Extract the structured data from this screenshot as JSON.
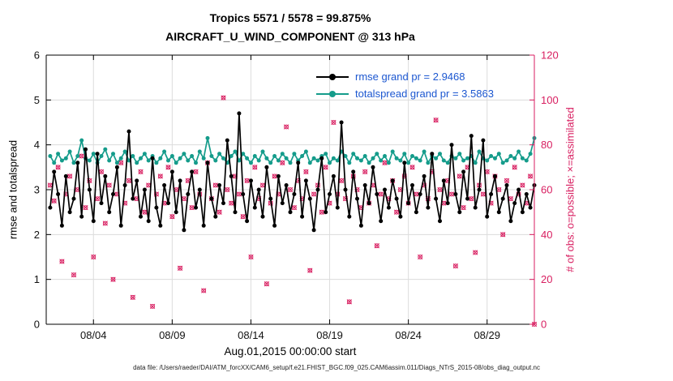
{
  "title": {
    "line1": "Tropics 5571 / 5578 = 99.875%",
    "line2": "AIRCRAFT_U_WIND_COMPONENT @ 313 hPa"
  },
  "legend": [
    {
      "label": "rmse grand pr = 2.9468",
      "color": "#000000"
    },
    {
      "label": "totalspread grand pr = 3.5863",
      "color": "#159c8b"
    }
  ],
  "styles": {
    "legend_text_color": "#1c57d0",
    "grid_color": "#dcdcdc"
  },
  "footer": {
    "datafile": "data file: /Users/raeder/DAI/ATM_forcXX/CAM6_setup/f.e21.FHIST_BGC.f09_025.CAM6assim.011/Diags_NTrS_2015-08/obs_diag_output.nc"
  },
  "chart_data": {
    "type": "line",
    "title": "Tropics 5571 / 5578 = 99.875%",
    "subtitle": "AIRCRAFT_U_WIND_COMPONENT @ 313 hPa",
    "xlabel": "Aug.01,2015 00:00:00 start",
    "x_range_days": 31,
    "x_start_days": 0.25,
    "x_step_days": 0.25,
    "x_ticks": [
      {
        "t": 3,
        "label": "08/04"
      },
      {
        "t": 8,
        "label": "08/09"
      },
      {
        "t": 13,
        "label": "08/14"
      },
      {
        "t": 18,
        "label": "08/19"
      },
      {
        "t": 23,
        "label": "08/24"
      },
      {
        "t": 28,
        "label": "08/29"
      }
    ],
    "left_axis": {
      "label": "rmse and totalspread",
      "min": 0,
      "max": 6,
      "ticks": [
        0,
        1,
        2,
        3,
        4,
        5,
        6
      ]
    },
    "right_axis": {
      "label": "# of obs: o=possible; ×=assimilated",
      "min": 0,
      "max": 120,
      "ticks": [
        0,
        20,
        40,
        60,
        80,
        100,
        120
      ],
      "color": "#d81e60"
    },
    "grid": true,
    "legend_position": "top-center-inside",
    "series": [
      {
        "name": "rmse",
        "grand_pr": 2.9468,
        "axis": "left",
        "color": "#000000",
        "marker": "dot",
        "values": [
          2.6,
          3.4,
          2.9,
          2.2,
          3.3,
          2.5,
          2.8,
          3.6,
          2.4,
          3.9,
          3.0,
          2.3,
          3.8,
          2.7,
          3.3,
          2.5,
          2.9,
          3.5,
          2.2,
          3.1,
          4.3,
          2.8,
          3.2,
          2.4,
          3.0,
          2.3,
          3.7,
          2.6,
          2.2,
          3.1,
          2.7,
          3.4,
          2.5,
          3.2,
          2.1,
          2.9,
          3.4,
          2.6,
          3.0,
          2.2,
          3.6,
          2.8,
          2.4,
          3.1,
          2.7,
          4.1,
          3.3,
          2.5,
          4.7,
          2.9,
          2.3,
          3.2,
          2.6,
          3.0,
          2.4,
          3.5,
          2.8,
          2.2,
          3.3,
          2.7,
          3.1,
          2.5,
          2.9,
          3.6,
          2.4,
          3.2,
          2.8,
          2.1,
          3.0,
          3.7,
          2.5,
          2.9,
          3.3,
          2.6,
          4.5,
          3.0,
          2.4,
          3.4,
          2.8,
          2.2,
          3.1,
          2.7,
          3.5,
          2.9,
          2.3,
          3.0,
          2.6,
          3.2,
          2.8,
          2.4,
          3.6,
          2.7,
          3.1,
          2.5,
          2.9,
          3.3,
          2.6,
          3.8,
          2.8,
          2.3,
          3.2,
          2.7,
          4.0,
          2.9,
          2.5,
          3.4,
          2.8,
          4.2,
          2.6,
          3.0,
          4.1,
          2.4,
          2.9,
          3.3,
          2.5,
          2.8,
          3.1,
          2.3,
          2.7,
          3.0,
          2.5,
          2.9,
          2.6,
          3.1
        ]
      },
      {
        "name": "totalspread",
        "grand_pr": 3.5863,
        "axis": "left",
        "color": "#159c8b",
        "marker": "dot",
        "values": [
          3.75,
          3.6,
          3.8,
          3.65,
          3.7,
          3.85,
          3.6,
          3.75,
          4.1,
          3.7,
          3.65,
          3.8,
          3.6,
          3.75,
          3.9,
          3.65,
          3.8,
          3.6,
          3.7,
          3.85,
          3.65,
          3.75,
          3.6,
          3.7,
          3.8,
          3.65,
          3.75,
          3.6,
          3.7,
          3.85,
          3.65,
          3.75,
          3.6,
          3.7,
          3.8,
          3.65,
          3.75,
          3.6,
          3.85,
          3.7,
          4.15,
          3.75,
          3.65,
          3.8,
          3.7,
          3.6,
          3.75,
          3.85,
          3.65,
          3.8,
          3.7,
          3.6,
          3.75,
          3.65,
          3.85,
          3.7,
          3.6,
          3.75,
          3.65,
          3.8,
          3.7,
          3.6,
          3.8,
          3.65,
          3.75,
          3.85,
          3.6,
          3.7,
          3.65,
          3.75,
          3.8,
          3.6,
          3.7,
          3.65,
          3.85,
          3.75,
          3.6,
          3.8,
          3.7,
          3.65,
          3.75,
          3.6,
          3.7,
          3.8,
          3.65,
          3.75,
          3.6,
          3.85,
          3.7,
          3.65,
          3.8,
          3.6,
          3.75,
          3.7,
          3.65,
          3.85,
          3.6,
          3.75,
          3.7,
          3.8,
          3.65,
          3.6,
          3.75,
          3.7,
          3.8,
          3.65,
          3.7,
          3.75,
          3.6,
          3.85,
          3.7,
          3.65,
          3.75,
          3.7,
          3.8,
          3.6,
          3.65,
          3.75,
          3.7,
          3.85,
          3.7,
          3.65,
          3.8,
          4.15
        ]
      },
      {
        "name": "obs_count",
        "type": "scatter",
        "axis": "right",
        "color": "#d81e60",
        "marker": "o+x",
        "values": [
          62,
          55,
          70,
          28,
          58,
          66,
          22,
          60,
          75,
          52,
          64,
          30,
          56,
          68,
          45,
          62,
          20,
          58,
          72,
          54,
          64,
          12,
          56,
          68,
          50,
          62,
          8,
          58,
          66,
          54,
          70,
          48,
          60,
          25,
          56,
          64,
          52,
          68,
          58,
          15,
          72,
          56,
          62,
          50,
          101,
          60,
          54,
          66,
          58,
          48,
          64,
          30,
          70,
          56,
          62,
          18,
          54,
          66,
          58,
          72,
          88,
          60,
          52,
          64,
          56,
          68,
          24,
          58,
          62,
          50,
          70,
          54,
          90,
          58,
          64,
          56,
          10,
          66,
          60,
          52,
          68,
          54,
          62,
          35,
          58,
          72,
          56,
          64,
          50,
          60,
          66,
          54,
          70,
          58,
          30,
          62,
          56,
          68,
          91,
          60,
          54,
          64,
          58,
          26,
          66,
          52,
          70,
          56,
          32,
          62,
          58,
          68,
          54,
          66,
          60,
          40,
          64,
          56,
          70,
          58,
          62,
          54,
          66,
          0
        ]
      }
    ]
  }
}
